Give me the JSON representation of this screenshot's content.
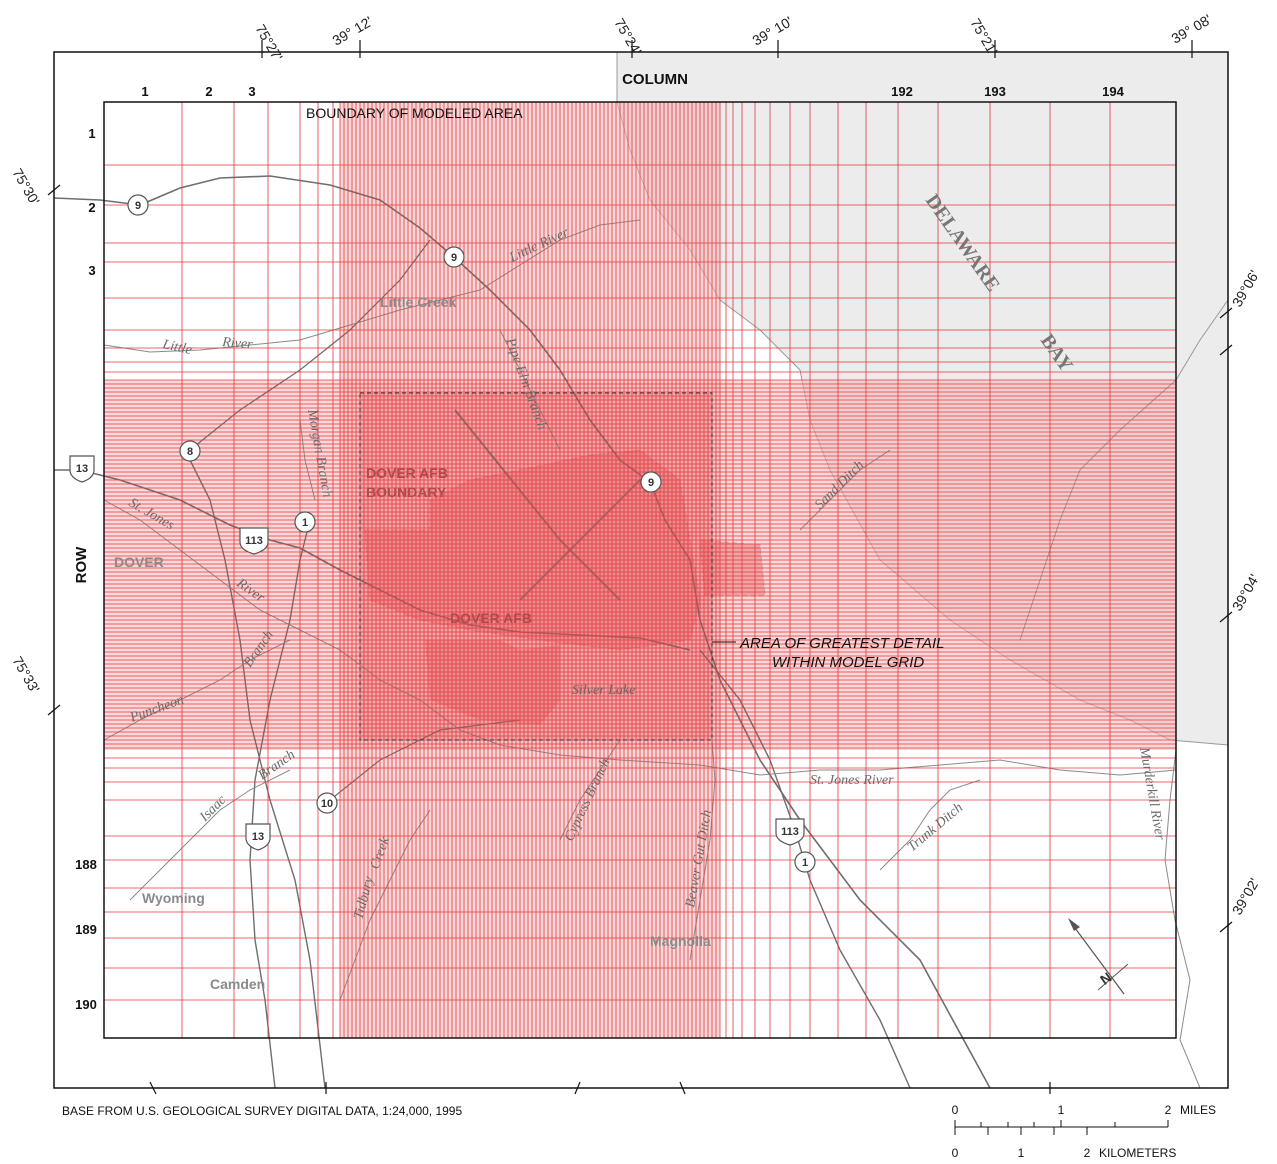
{
  "title_labels": {
    "column": "COLUMN",
    "row": "ROW",
    "boundary": "BOUNDARY OF MODELED AREA",
    "detail_line1": "AREA OF GREATEST DETAIL",
    "detail_line2": "WITHIN MODEL GRID",
    "afb_boundary_line1": "DOVER AFB",
    "afb_boundary_line2": "BOUNDARY",
    "afb": "DOVER AFB"
  },
  "column_numbers": [
    "1",
    "2",
    "3",
    "192",
    "193",
    "194"
  ],
  "row_numbers": [
    "1",
    "2",
    "3",
    "188",
    "189",
    "190"
  ],
  "coordinates": {
    "top": [
      "75°27'",
      "39° 12'",
      "75°24'",
      "39° 10'",
      "75°21'",
      "39° 08'"
    ],
    "left": [
      "75°30'",
      "75°33'"
    ],
    "right": [
      "39°06'",
      "39°04'",
      "39°02'"
    ]
  },
  "places": [
    "Little Creek",
    "DOVER",
    "Wyoming",
    "Camden",
    "Magnolia"
  ],
  "water": [
    "DELAWARE",
    "BAY"
  ],
  "rivers": [
    "Little River",
    "Little",
    "River",
    "St. Jones",
    "River",
    "Branch",
    "Puncheon",
    "Isaac",
    "Branch",
    "Tidbury",
    "Creek",
    "Cypress Branch",
    "Beaver Gut Ditch",
    "St. Jones River",
    "Trunk Ditch",
    "Murderkill River",
    "Sand Ditch",
    "Pipe Elm Branch",
    "Morgan Branch",
    "Silver Lake"
  ],
  "routes": [
    "9",
    "9",
    "9",
    "8",
    "13",
    "113",
    "1",
    "10",
    "13",
    "113",
    "1"
  ],
  "footer": {
    "base": "BASE FROM U.S. GEOLOGICAL SURVEY DIGITAL DATA, 1:24,000, 1995",
    "miles_ticks": [
      "0",
      "1",
      "2"
    ],
    "miles_unit": "MILES",
    "km_ticks": [
      "0",
      "1",
      "2"
    ],
    "km_unit": "KILOMETERS"
  },
  "colors": {
    "grid": "#e0383c",
    "dense_fill": "#f19092",
    "water": "#ececec",
    "roads": "#6e6e6e"
  },
  "north_arrow_label": "N"
}
